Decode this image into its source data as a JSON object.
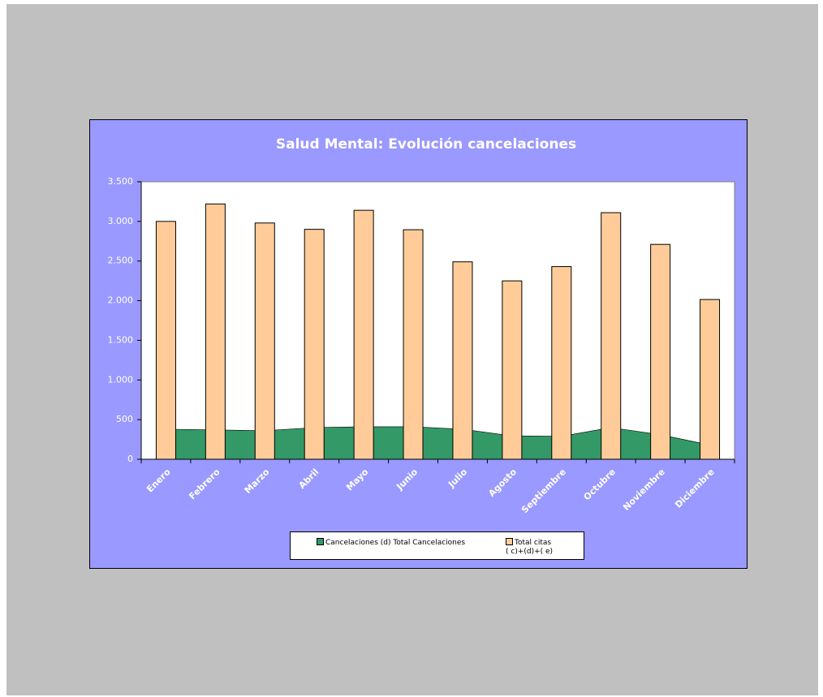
{
  "chart_data": {
    "type": "combo",
    "title": "Salud Mental: Evolución cancelaciones",
    "categories": [
      "Enero",
      "Febrero",
      "Marzo",
      "Abril",
      "Mayo",
      "Junio",
      "Julio",
      "Agosto",
      "Septiembre",
      "Octubre",
      "Noviembre",
      "Diciembre"
    ],
    "series": [
      {
        "name": "Cancelaciones (d) Total Cancelaciones",
        "type": "area",
        "color": "#339966",
        "values": [
          380,
          370,
          360,
          400,
          410,
          410,
          380,
          295,
          290,
          400,
          310,
          180
        ]
      },
      {
        "name": "Total citas\n( c)+(d)+( e)",
        "type": "bar",
        "color": "#ffcc99",
        "values": [
          3000,
          3220,
          2980,
          2900,
          3140,
          2895,
          2490,
          2250,
          2430,
          3110,
          2710,
          2015
        ]
      }
    ],
    "ylim": [
      0,
      3500
    ],
    "yticks": [
      0,
      500,
      {
        "value": 1000,
        "label": "1.000"
      },
      {
        "value": 1500,
        "label": "1.500"
      },
      {
        "value": 2000,
        "label": "2.000"
      },
      {
        "value": 2500,
        "label": "2.500"
      },
      {
        "value": 3000,
        "label": "3.000"
      },
      {
        "value": 3500,
        "label": "3.500"
      }
    ],
    "grid": false
  }
}
